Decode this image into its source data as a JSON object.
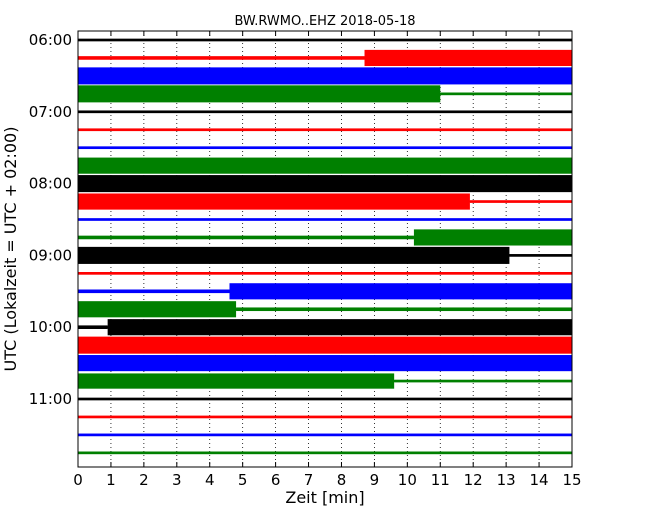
{
  "chart_data": {
    "type": "line",
    "title": "BW.RWMO..EHZ 2018-05-18",
    "xlabel": "Zeit  [min]",
    "ylabel": "UTC (Lokalzeit = UTC + 02:00)",
    "xlim": [
      0,
      15
    ],
    "x_ticks": [
      "0",
      "1",
      "2",
      "3",
      "4",
      "5",
      "6",
      "7",
      "8",
      "9",
      "10",
      "11",
      "12",
      "13",
      "14",
      "15"
    ],
    "y_ticks": [
      "06:00",
      "07:00",
      "08:00",
      "09:00",
      "10:00",
      "11:00"
    ],
    "grid": "vertical dotted",
    "row_interval_min": 15,
    "colors": [
      "#000000",
      "#ff0000",
      "#0000ff",
      "#008000"
    ],
    "rows": [
      {
        "time": "06:00",
        "color": "#000000",
        "segments": [
          [
            0,
            15,
            0.15
          ]
        ]
      },
      {
        "time": "06:15",
        "color": "#ff0000",
        "segments": [
          [
            0,
            8.7,
            0.2
          ],
          [
            8.7,
            15,
            0.9
          ]
        ]
      },
      {
        "time": "06:30",
        "color": "#0000ff",
        "segments": [
          [
            0,
            15,
            0.95
          ]
        ]
      },
      {
        "time": "06:45",
        "color": "#008000",
        "segments": [
          [
            0,
            11,
            0.95
          ],
          [
            11,
            15,
            0.15
          ]
        ]
      },
      {
        "time": "07:00",
        "color": "#000000",
        "segments": [
          [
            0,
            15,
            0.15
          ]
        ]
      },
      {
        "time": "07:15",
        "color": "#ff0000",
        "segments": [
          [
            0,
            15,
            0.15
          ]
        ]
      },
      {
        "time": "07:30",
        "color": "#0000ff",
        "segments": [
          [
            0,
            15,
            0.15
          ]
        ]
      },
      {
        "time": "07:45",
        "color": "#008000",
        "segments": [
          [
            0,
            15,
            0.9
          ]
        ]
      },
      {
        "time": "08:00",
        "color": "#000000",
        "segments": [
          [
            0,
            15,
            0.95
          ]
        ]
      },
      {
        "time": "08:15",
        "color": "#ff0000",
        "segments": [
          [
            0,
            11.9,
            0.9
          ],
          [
            11.9,
            15,
            0.15
          ]
        ]
      },
      {
        "time": "08:30",
        "color": "#0000ff",
        "segments": [
          [
            0,
            15,
            0.15
          ]
        ]
      },
      {
        "time": "08:45",
        "color": "#008000",
        "segments": [
          [
            0,
            10.2,
            0.2
          ],
          [
            10.2,
            15,
            0.9
          ]
        ]
      },
      {
        "time": "09:00",
        "color": "#000000",
        "segments": [
          [
            0,
            13.1,
            0.95
          ],
          [
            13.1,
            15,
            0.15
          ]
        ]
      },
      {
        "time": "09:15",
        "color": "#ff0000",
        "segments": [
          [
            0,
            15,
            0.15
          ]
        ]
      },
      {
        "time": "09:30",
        "color": "#0000ff",
        "segments": [
          [
            0,
            4.6,
            0.2
          ],
          [
            4.6,
            15,
            0.9
          ]
        ]
      },
      {
        "time": "09:45",
        "color": "#008000",
        "segments": [
          [
            0,
            4.8,
            0.9
          ],
          [
            4.8,
            15,
            0.2
          ]
        ]
      },
      {
        "time": "10:00",
        "color": "#000000",
        "segments": [
          [
            0,
            0.9,
            0.2
          ],
          [
            0.9,
            15,
            0.9
          ]
        ]
      },
      {
        "time": "10:15",
        "color": "#ff0000",
        "segments": [
          [
            0,
            15,
            0.95
          ]
        ]
      },
      {
        "time": "10:30",
        "color": "#0000ff",
        "segments": [
          [
            0,
            15,
            0.9
          ]
        ]
      },
      {
        "time": "10:45",
        "color": "#008000",
        "segments": [
          [
            0,
            9.6,
            0.85
          ],
          [
            9.6,
            15,
            0.15
          ]
        ]
      },
      {
        "time": "11:00",
        "color": "#000000",
        "segments": [
          [
            0,
            15,
            0.15
          ]
        ]
      },
      {
        "time": "11:15",
        "color": "#ff0000",
        "segments": [
          [
            0,
            15,
            0.15
          ]
        ]
      },
      {
        "time": "11:30",
        "color": "#0000ff",
        "segments": [
          [
            0,
            15,
            0.15
          ]
        ]
      },
      {
        "time": "11:45",
        "color": "#008000",
        "segments": [
          [
            0,
            15,
            0.15
          ]
        ]
      }
    ]
  }
}
